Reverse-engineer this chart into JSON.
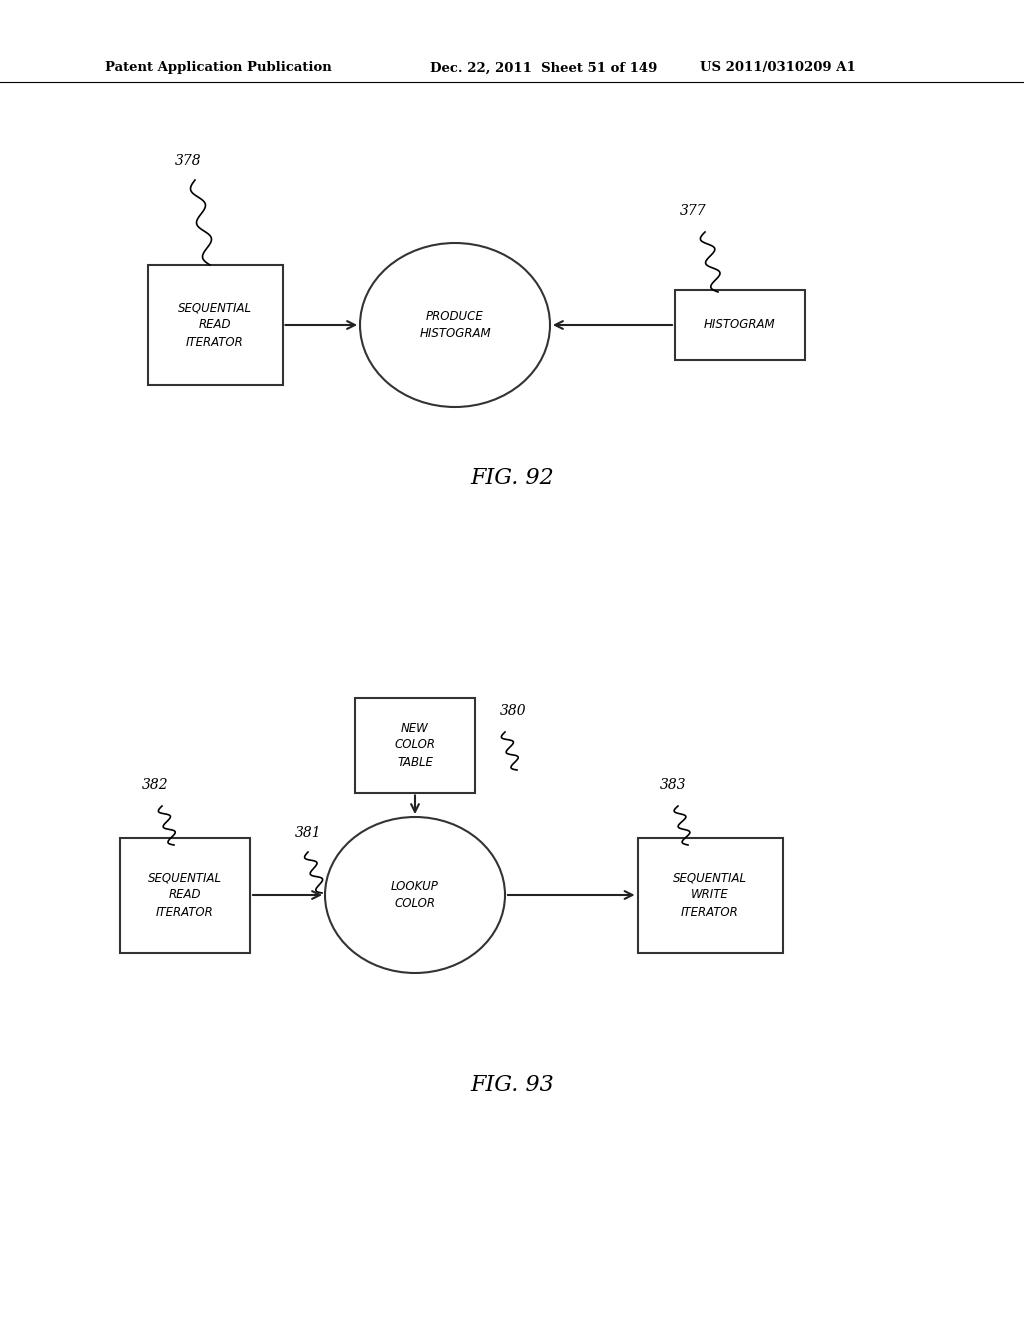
{
  "bg_color": "#ffffff",
  "header_left": "Patent Application Publication",
  "header_mid": "Dec. 22, 2011  Sheet 51 of 149",
  "header_right": "US 2011/0310209 A1",
  "fig92_caption": "FIG. 92",
  "fig93_caption": "FIG. 93"
}
